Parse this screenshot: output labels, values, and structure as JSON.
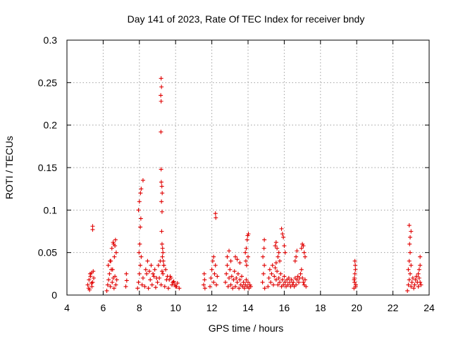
{
  "chart_data": {
    "type": "scatter",
    "title": "Day 141 of 2023, Rate Of TEC Index for receiver bndy",
    "xlabel": "GPS time / hours",
    "ylabel": "ROTI / TECUs",
    "xlim": [
      4,
      24
    ],
    "ylim": [
      0,
      0.3
    ],
    "x_ticks": [
      4,
      6,
      8,
      10,
      12,
      14,
      16,
      18,
      20,
      22,
      24
    ],
    "y_ticks": [
      0,
      0.05,
      0.1,
      0.15,
      0.2,
      0.25,
      0.3
    ],
    "x_tick_labels": [
      "4",
      "6",
      "8",
      "10",
      "12",
      "14",
      "16",
      "18",
      "20",
      "22",
      "24"
    ],
    "y_tick_labels": [
      "0",
      "0.05",
      "0.1",
      "0.15",
      "0.2",
      "0.25",
      "0.3"
    ],
    "grid": true,
    "marker": "+",
    "series": [
      {
        "color": "#e00000",
        "x": [
          5.15,
          5.22,
          5.3,
          5.36,
          5.42,
          5.48,
          5.2,
          5.28,
          5.35,
          5.45,
          5.25,
          5.38,
          5.42,
          5.42,
          6.2,
          6.25,
          6.3,
          6.35,
          6.4,
          6.45,
          6.5,
          6.55,
          6.6,
          6.65,
          6.7,
          6.75,
          6.28,
          6.38,
          6.52,
          6.62,
          6.72,
          6.48,
          6.58,
          6.68,
          6.42,
          6.55,
          6.65,
          7.25,
          7.3,
          7.28,
          7.9,
          7.95,
          8.0,
          8.05,
          8.1,
          8.15,
          8.2,
          8.3,
          8.4,
          8.5,
          8.6,
          8.7,
          8.8,
          8.9,
          9.0,
          9.1,
          9.2,
          9.3,
          9.4,
          9.5,
          9.6,
          9.7,
          9.8,
          9.9,
          10.0,
          10.1,
          10.2,
          7.98,
          8.02,
          8.05,
          8.08,
          7.95,
          8.0,
          8.06,
          8.1,
          8.2,
          8.35,
          8.45,
          8.55,
          8.65,
          8.75,
          8.85,
          8.95,
          9.05,
          9.15,
          9.25,
          9.35,
          9.45,
          9.55,
          9.65,
          9.75,
          9.85,
          9.95,
          10.05,
          9.2,
          9.22,
          9.18,
          9.2,
          9.19,
          9.2,
          9.21,
          9.24,
          9.26,
          9.22,
          9.25,
          9.23,
          9.25,
          9.28,
          9.3,
          9.27,
          9.32,
          9.35,
          11.55,
          11.6,
          11.58,
          11.62,
          11.9,
          11.95,
          12.0,
          12.05,
          12.1,
          12.15,
          12.2,
          12.25,
          12.3,
          12.2,
          12.22,
          12.1,
          12.75,
          12.8,
          12.85,
          12.9,
          12.95,
          13.0,
          13.05,
          13.1,
          13.15,
          13.2,
          13.25,
          13.3,
          13.35,
          13.4,
          13.45,
          13.5,
          13.55,
          13.6,
          13.65,
          13.7,
          13.75,
          13.8,
          13.85,
          13.9,
          13.95,
          14.0,
          14.05,
          14.1,
          14.15,
          12.85,
          12.95,
          13.05,
          13.3,
          13.4,
          13.55,
          13.85,
          13.9,
          13.95,
          13.98,
          14.02,
          13.92,
          13.88,
          14.0,
          14.8,
          14.85,
          14.9,
          14.82,
          14.88,
          14.9,
          14.92,
          15.1,
          15.15,
          15.2,
          15.25,
          15.3,
          15.35,
          15.4,
          15.45,
          15.5,
          15.55,
          15.6,
          15.65,
          15.7,
          15.75,
          15.8,
          15.85,
          15.9,
          15.95,
          16.0,
          16.05,
          16.1,
          16.15,
          16.2,
          16.25,
          16.3,
          16.35,
          16.4,
          16.45,
          16.5,
          16.55,
          16.6,
          16.65,
          16.7,
          16.75,
          16.8,
          16.85,
          16.9,
          16.95,
          17.0,
          17.05,
          17.1,
          17.15,
          17.2,
          15.5,
          15.55,
          15.6,
          15.7,
          15.85,
          15.9,
          15.95,
          16.0,
          16.05,
          16.6,
          16.65,
          16.7,
          16.95,
          17.0,
          17.05,
          17.1,
          17.15,
          15.65,
          15.75,
          15.55,
          19.85,
          19.88,
          19.9,
          19.92,
          19.95,
          19.87,
          19.93,
          19.9,
          19.86,
          19.94,
          22.8,
          22.85,
          22.9,
          22.95,
          23.0,
          23.05,
          23.1,
          23.15,
          23.2,
          23.25,
          23.3,
          23.35,
          23.4,
          23.45,
          23.5,
          23.55,
          22.85,
          22.9,
          22.95,
          23.0,
          23.4,
          23.45,
          23.5,
          22.92,
          22.95,
          23.0,
          22.9,
          23.5
        ],
        "y": [
          0.012,
          0.018,
          0.022,
          0.026,
          0.015,
          0.02,
          0.008,
          0.025,
          0.014,
          0.028,
          0.006,
          0.01,
          0.077,
          0.081,
          0.005,
          0.012,
          0.018,
          0.025,
          0.01,
          0.03,
          0.015,
          0.02,
          0.008,
          0.022,
          0.012,
          0.018,
          0.035,
          0.04,
          0.03,
          0.045,
          0.05,
          0.055,
          0.06,
          0.065,
          0.04,
          0.062,
          0.058,
          0.01,
          0.017,
          0.025,
          0.008,
          0.015,
          0.025,
          0.035,
          0.045,
          0.012,
          0.02,
          0.01,
          0.025,
          0.008,
          0.018,
          0.012,
          0.022,
          0.009,
          0.015,
          0.02,
          0.012,
          0.025,
          0.01,
          0.018,
          0.008,
          0.022,
          0.012,
          0.016,
          0.01,
          0.014,
          0.008,
          0.05,
          0.06,
          0.08,
          0.09,
          0.1,
          0.11,
          0.12,
          0.125,
          0.135,
          0.03,
          0.04,
          0.028,
          0.035,
          0.025,
          0.03,
          0.02,
          0.035,
          0.04,
          0.028,
          0.035,
          0.03,
          0.022,
          0.018,
          0.02,
          0.015,
          0.012,
          0.01,
          0.255,
          0.245,
          0.235,
          0.228,
          0.192,
          0.148,
          0.133,
          0.128,
          0.12,
          0.11,
          0.098,
          0.075,
          0.06,
          0.055,
          0.05,
          0.045,
          0.04,
          0.035,
          0.012,
          0.018,
          0.025,
          0.008,
          0.01,
          0.02,
          0.03,
          0.04,
          0.015,
          0.025,
          0.035,
          0.012,
          0.022,
          0.096,
          0.091,
          0.045,
          0.015,
          0.025,
          0.035,
          0.01,
          0.02,
          0.03,
          0.012,
          0.022,
          0.008,
          0.018,
          0.028,
          0.01,
          0.02,
          0.015,
          0.025,
          0.008,
          0.018,
          0.012,
          0.022,
          0.01,
          0.015,
          0.008,
          0.012,
          0.018,
          0.01,
          0.015,
          0.008,
          0.012,
          0.01,
          0.045,
          0.052,
          0.04,
          0.045,
          0.042,
          0.038,
          0.05,
          0.055,
          0.065,
          0.07,
          0.072,
          0.035,
          0.04,
          0.045,
          0.015,
          0.025,
          0.035,
          0.045,
          0.055,
          0.065,
          0.008,
          0.01,
          0.02,
          0.03,
          0.015,
          0.025,
          0.035,
          0.012,
          0.022,
          0.032,
          0.018,
          0.028,
          0.012,
          0.02,
          0.015,
          0.025,
          0.01,
          0.018,
          0.012,
          0.022,
          0.015,
          0.01,
          0.018,
          0.012,
          0.02,
          0.015,
          0.01,
          0.018,
          0.012,
          0.015,
          0.01,
          0.02,
          0.012,
          0.018,
          0.022,
          0.015,
          0.02,
          0.025,
          0.03,
          0.02,
          0.015,
          0.012,
          0.018,
          0.01,
          0.058,
          0.062,
          0.055,
          0.05,
          0.078,
          0.072,
          0.068,
          0.058,
          0.05,
          0.04,
          0.045,
          0.052,
          0.055,
          0.06,
          0.058,
          0.05,
          0.045,
          0.045,
          0.04,
          0.038,
          0.008,
          0.015,
          0.025,
          0.035,
          0.012,
          0.02,
          0.03,
          0.04,
          0.018,
          0.01,
          0.005,
          0.012,
          0.018,
          0.025,
          0.01,
          0.015,
          0.02,
          0.008,
          0.012,
          0.018,
          0.022,
          0.015,
          0.01,
          0.02,
          0.015,
          0.012,
          0.03,
          0.04,
          0.05,
          0.035,
          0.025,
          0.03,
          0.045,
          0.06,
          0.068,
          0.075,
          0.082,
          0.035
        ]
      }
    ]
  }
}
